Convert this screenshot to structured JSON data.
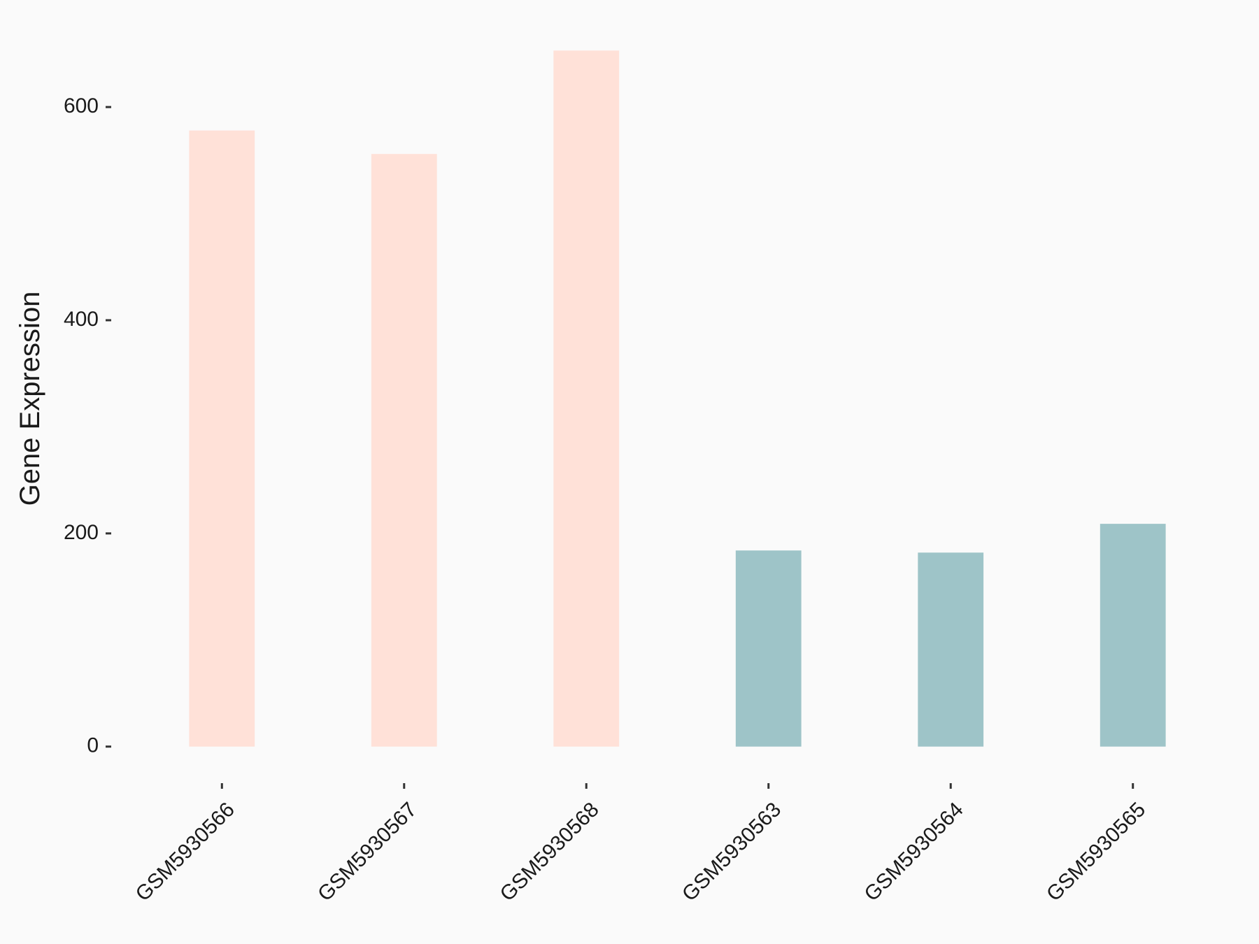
{
  "chart_data": {
    "type": "bar",
    "y_label": "Gene Expression",
    "categories": [
      "GSM5930566",
      "GSM5930567",
      "GSM5930568",
      "GSM5930563",
      "GSM5930564",
      "GSM5930565"
    ],
    "values": [
      578,
      556,
      653,
      184,
      182,
      209
    ],
    "colors": [
      "#FFE1D8",
      "#FFE1D8",
      "#FFE1D8",
      "#9EC4C8",
      "#9EC4C8",
      "#9EC4C8"
    ],
    "ylim": [
      -33,
      686
    ],
    "yticks": [
      0,
      200,
      400,
      600
    ]
  }
}
